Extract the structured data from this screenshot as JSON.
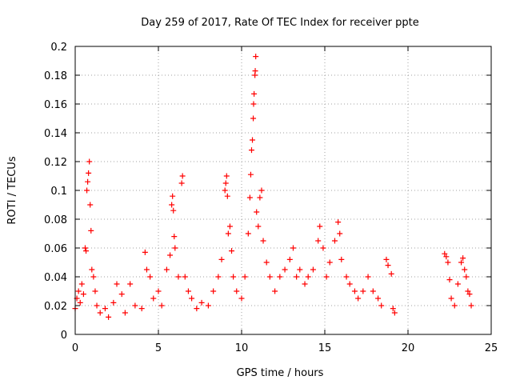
{
  "chart_data": {
    "type": "scatter",
    "title": "Day 259 of 2017, Rate Of TEC Index for receiver ppte",
    "xlabel": "GPS time / hours",
    "ylabel": "ROTI / TECUs",
    "xlim": [
      0,
      25
    ],
    "ylim": [
      0,
      0.2
    ],
    "grid": true,
    "x_ticks": [
      0,
      5,
      10,
      15,
      20,
      25
    ],
    "x_tick_labels": [
      "0",
      "5",
      "10",
      "15",
      "20",
      "25"
    ],
    "y_ticks": [
      0,
      0.02,
      0.04,
      0.06,
      0.08,
      0.1,
      0.12,
      0.14,
      0.16,
      0.18,
      0.2
    ],
    "y_tick_labels": [
      "0",
      "0.02",
      "0.04",
      "0.06",
      "0.08",
      "0.1",
      "0.12",
      "0.14",
      "0.16",
      "0.18",
      "0.2"
    ],
    "marker": "+",
    "series": [
      {
        "name": "ROTI",
        "color": "#ff0000",
        "points": [
          [
            0.0,
            0.018
          ],
          [
            0.1,
            0.025
          ],
          [
            0.2,
            0.03
          ],
          [
            0.3,
            0.022
          ],
          [
            0.4,
            0.035
          ],
          [
            0.5,
            0.028
          ],
          [
            0.6,
            0.06
          ],
          [
            0.65,
            0.058
          ],
          [
            0.7,
            0.1
          ],
          [
            0.75,
            0.106
          ],
          [
            0.8,
            0.112
          ],
          [
            0.85,
            0.12
          ],
          [
            0.9,
            0.09
          ],
          [
            0.95,
            0.072
          ],
          [
            1.0,
            0.045
          ],
          [
            1.1,
            0.04
          ],
          [
            1.2,
            0.03
          ],
          [
            1.3,
            0.02
          ],
          [
            1.5,
            0.015
          ],
          [
            1.8,
            0.018
          ],
          [
            2.0,
            0.012
          ],
          [
            2.3,
            0.022
          ],
          [
            2.5,
            0.035
          ],
          [
            2.8,
            0.028
          ],
          [
            3.0,
            0.015
          ],
          [
            3.3,
            0.035
          ],
          [
            3.6,
            0.02
          ],
          [
            4.0,
            0.018
          ],
          [
            4.2,
            0.057
          ],
          [
            4.3,
            0.045
          ],
          [
            4.5,
            0.04
          ],
          [
            4.7,
            0.025
          ],
          [
            5.0,
            0.03
          ],
          [
            5.2,
            0.02
          ],
          [
            5.5,
            0.045
          ],
          [
            5.7,
            0.055
          ],
          [
            5.8,
            0.09
          ],
          [
            5.85,
            0.096
          ],
          [
            5.9,
            0.086
          ],
          [
            5.95,
            0.068
          ],
          [
            6.0,
            0.06
          ],
          [
            6.2,
            0.04
          ],
          [
            6.4,
            0.105
          ],
          [
            6.45,
            0.11
          ],
          [
            6.6,
            0.04
          ],
          [
            6.8,
            0.03
          ],
          [
            7.0,
            0.025
          ],
          [
            7.3,
            0.018
          ],
          [
            7.6,
            0.022
          ],
          [
            8.0,
            0.02
          ],
          [
            8.3,
            0.03
          ],
          [
            8.6,
            0.04
          ],
          [
            8.8,
            0.052
          ],
          [
            9.0,
            0.1
          ],
          [
            9.05,
            0.105
          ],
          [
            9.1,
            0.11
          ],
          [
            9.15,
            0.096
          ],
          [
            9.2,
            0.07
          ],
          [
            9.3,
            0.075
          ],
          [
            9.4,
            0.058
          ],
          [
            9.5,
            0.04
          ],
          [
            9.7,
            0.03
          ],
          [
            10.0,
            0.025
          ],
          [
            10.2,
            0.04
          ],
          [
            10.4,
            0.07
          ],
          [
            10.5,
            0.095
          ],
          [
            10.55,
            0.111
          ],
          [
            10.6,
            0.128
          ],
          [
            10.65,
            0.135
          ],
          [
            10.7,
            0.15
          ],
          [
            10.72,
            0.16
          ],
          [
            10.75,
            0.167
          ],
          [
            10.8,
            0.18
          ],
          [
            10.82,
            0.183
          ],
          [
            10.85,
            0.193
          ],
          [
            10.9,
            0.085
          ],
          [
            11.0,
            0.075
          ],
          [
            11.1,
            0.095
          ],
          [
            11.2,
            0.1
          ],
          [
            11.3,
            0.065
          ],
          [
            11.5,
            0.05
          ],
          [
            11.7,
            0.04
          ],
          [
            12.0,
            0.03
          ],
          [
            12.3,
            0.04
          ],
          [
            12.6,
            0.045
          ],
          [
            12.9,
            0.052
          ],
          [
            13.1,
            0.06
          ],
          [
            13.3,
            0.04
          ],
          [
            13.5,
            0.045
          ],
          [
            13.8,
            0.035
          ],
          [
            14.0,
            0.04
          ],
          [
            14.3,
            0.045
          ],
          [
            14.6,
            0.065
          ],
          [
            14.7,
            0.075
          ],
          [
            14.9,
            0.06
          ],
          [
            15.1,
            0.04
          ],
          [
            15.3,
            0.05
          ],
          [
            15.6,
            0.065
          ],
          [
            15.8,
            0.078
          ],
          [
            15.9,
            0.07
          ],
          [
            16.0,
            0.052
          ],
          [
            16.3,
            0.04
          ],
          [
            16.5,
            0.035
          ],
          [
            16.8,
            0.03
          ],
          [
            17.0,
            0.025
          ],
          [
            17.3,
            0.03
          ],
          [
            17.6,
            0.04
          ],
          [
            17.9,
            0.03
          ],
          [
            18.2,
            0.025
          ],
          [
            18.4,
            0.02
          ],
          [
            18.7,
            0.052
          ],
          [
            18.8,
            0.048
          ],
          [
            19.0,
            0.042
          ],
          [
            19.1,
            0.018
          ],
          [
            19.2,
            0.015
          ],
          [
            22.2,
            0.056
          ],
          [
            22.3,
            0.054
          ],
          [
            22.4,
            0.05
          ],
          [
            22.5,
            0.038
          ],
          [
            22.6,
            0.025
          ],
          [
            22.8,
            0.02
          ],
          [
            23.0,
            0.035
          ],
          [
            23.2,
            0.05
          ],
          [
            23.3,
            0.053
          ],
          [
            23.4,
            0.045
          ],
          [
            23.5,
            0.04
          ],
          [
            23.6,
            0.03
          ],
          [
            23.7,
            0.028
          ],
          [
            23.8,
            0.02
          ]
        ]
      }
    ]
  }
}
